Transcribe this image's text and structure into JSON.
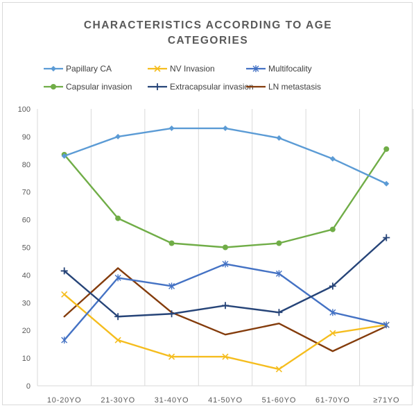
{
  "chart_data": {
    "type": "line",
    "title": "CHARACTERISTICS ACCORDING TO AGE CATEGORIES",
    "title_lines": [
      "CHARACTERISTICS ACCORDING TO AGE",
      "CATEGORIES"
    ],
    "categories": [
      "10-20YO",
      "21-30YO",
      "31-40YO",
      "41-50YO",
      "51-60YO",
      "61-70YO",
      "≥71YO"
    ],
    "ylim": [
      0,
      100
    ],
    "yticks": [
      "0",
      "10",
      "20",
      "30",
      "40",
      "50",
      "60",
      "70",
      "80",
      "90",
      "100"
    ],
    "grid": "vertical",
    "legend_position": "top",
    "series": [
      {
        "name": "Papillary CA",
        "color": "#5b9bd5",
        "marker": "diamond",
        "values": [
          83,
          90,
          93,
          93,
          89.5,
          82,
          73
        ]
      },
      {
        "name": "NV Invasion",
        "color": "#f5bd1e",
        "marker": "x",
        "values": [
          33,
          16.5,
          10.5,
          10.5,
          6,
          19,
          22
        ]
      },
      {
        "name": "Multifocality",
        "color": "#4472c4",
        "marker": "star",
        "values": [
          16.5,
          39,
          36,
          44,
          40.5,
          26.5,
          22
        ]
      },
      {
        "name": "Capsular invasion",
        "color": "#70ad47",
        "marker": "circle",
        "values": [
          83.5,
          60.5,
          51.5,
          50,
          51.5,
          56.5,
          85.5
        ]
      },
      {
        "name": "Extracapsular invasion",
        "color": "#264478",
        "marker": "plus",
        "values": [
          41.5,
          25,
          26,
          29,
          26.5,
          36,
          53.5
        ]
      },
      {
        "name": "LN metastasis",
        "color": "#843c0c",
        "marker": "none",
        "values": [
          25,
          42.5,
          26.5,
          18.5,
          22.5,
          12.5,
          21.5
        ]
      }
    ]
  }
}
